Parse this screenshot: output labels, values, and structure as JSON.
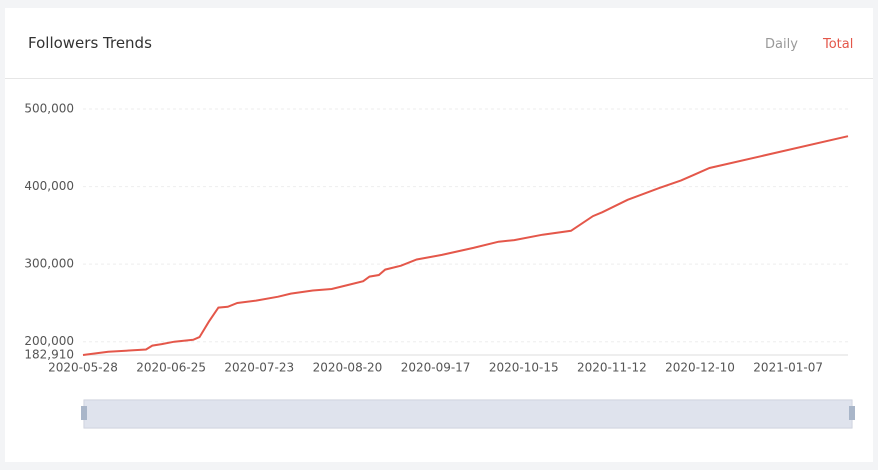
{
  "header": {
    "title": "Followers Trends",
    "toggles": [
      "Daily",
      "Total"
    ]
  },
  "chart_data": {
    "type": "line",
    "x": [
      "2020-05-28",
      "2020-06-05",
      "2020-06-17",
      "2020-06-19",
      "2020-06-22",
      "2020-06-26",
      "2020-07-02",
      "2020-07-04",
      "2020-07-07",
      "2020-07-10",
      "2020-07-13",
      "2020-07-16",
      "2020-07-22",
      "2020-07-29",
      "2020-08-02",
      "2020-08-09",
      "2020-08-15",
      "2020-08-20",
      "2020-08-25",
      "2020-08-27",
      "2020-08-30",
      "2020-09-01",
      "2020-09-06",
      "2020-09-11",
      "2020-09-19",
      "2020-09-29",
      "2020-10-07",
      "2020-10-12",
      "2020-10-21",
      "2020-10-30",
      "2020-11-06",
      "2020-11-09",
      "2020-11-17",
      "2020-11-27",
      "2020-12-04",
      "2020-12-08",
      "2020-12-13",
      "2021-01-26"
    ],
    "series": [
      {
        "name": "Total",
        "color": "#e4574a",
        "values": [
          182910,
          187000,
          190000,
          195000,
          197000,
          200000,
          202500,
          206000,
          226000,
          244000,
          245000,
          250000,
          253000,
          258000,
          262000,
          266000,
          268000,
          273000,
          278000,
          284000,
          286000,
          293000,
          298000,
          306000,
          312000,
          321000,
          329000,
          331000,
          338000,
          343000,
          362000,
          367000,
          383000,
          398000,
          408000,
          415000,
          424000,
          465000
        ]
      }
    ],
    "xlim": [
      "2020-05-28",
      "2021-01-26"
    ],
    "xticks": [
      "2020-05-28",
      "2020-06-25",
      "2020-07-23",
      "2020-08-20",
      "2020-09-17",
      "2020-10-15",
      "2020-11-12",
      "2020-12-10",
      "2021-01-07"
    ],
    "ylim": [
      182910,
      500000
    ],
    "yticks": [
      {
        "value": 182910,
        "label": "182,910"
      },
      {
        "value": 200000,
        "label": "200,000"
      },
      {
        "value": 300000,
        "label": "300,000"
      },
      {
        "value": 400000,
        "label": "400,000"
      },
      {
        "value": 500000,
        "label": "500,000"
      }
    ],
    "grid": true
  }
}
